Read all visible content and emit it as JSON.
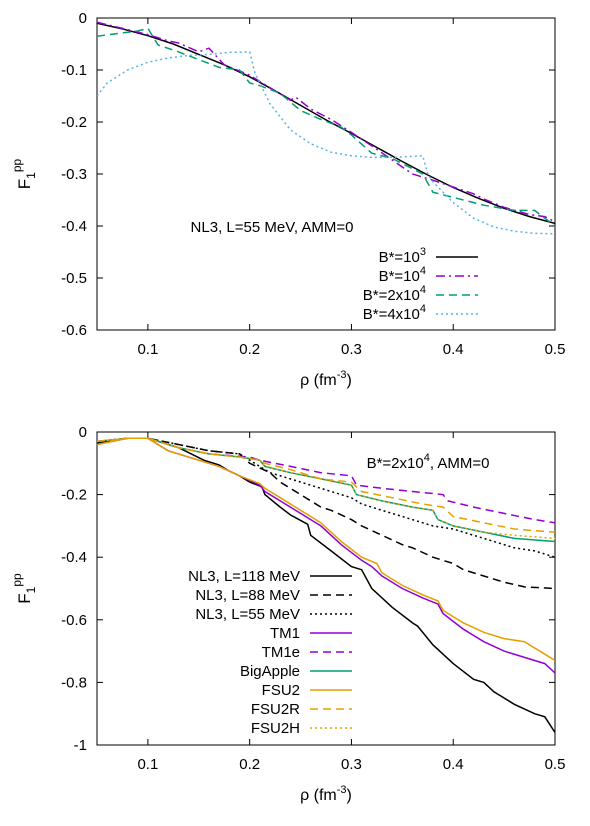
{
  "chart_data": [
    {
      "type": "line",
      "ylabel": "F",
      "ylabel_sub": "1",
      "ylabel_sup": "pp",
      "xlabel": "ρ (fm",
      "xlabel_sup": "-3",
      "xlabel_tail": ")",
      "xlim": [
        0.05,
        0.5
      ],
      "ylim": [
        -0.6,
        0
      ],
      "xticks": [
        0.1,
        0.2,
        0.3,
        0.4,
        0.5
      ],
      "xtick_labels": [
        "0.1",
        "0.2",
        "0.3",
        "0.4",
        "0.5"
      ],
      "yticks": [
        0,
        -0.1,
        -0.2,
        -0.3,
        -0.4,
        -0.5,
        -0.6
      ],
      "ytick_labels": [
        "0",
        "-0.1",
        "-0.2",
        "-0.3",
        "-0.4",
        "-0.5",
        "-0.6"
      ],
      "annotation": "NL3, L=55 MeV, AMM=0",
      "legend_position": "bottom-right",
      "series": [
        {
          "name": "B*=10",
          "name_sup": "3",
          "color": "#000000",
          "dash": "solid",
          "x": [
            0.05,
            0.075,
            0.1,
            0.125,
            0.15,
            0.175,
            0.2,
            0.225,
            0.25,
            0.275,
            0.3,
            0.325,
            0.35,
            0.375,
            0.4,
            0.425,
            0.45,
            0.475,
            0.5
          ],
          "y": [
            -0.01,
            -0.021,
            -0.034,
            -0.05,
            -0.07,
            -0.09,
            -0.113,
            -0.14,
            -0.168,
            -0.196,
            -0.222,
            -0.249,
            -0.276,
            -0.302,
            -0.326,
            -0.347,
            -0.366,
            -0.382,
            -0.395
          ]
        },
        {
          "name": "B*=10",
          "name_sup": "4",
          "color": "#9400d3",
          "dash": "dashdot",
          "x": [
            0.05,
            0.075,
            0.1,
            0.12,
            0.13,
            0.15,
            0.16,
            0.175,
            0.2,
            0.22,
            0.24,
            0.245,
            0.26,
            0.28,
            0.3,
            0.32,
            0.34,
            0.36,
            0.38,
            0.4,
            0.42,
            0.43,
            0.45,
            0.475,
            0.49,
            0.5
          ],
          "y": [
            -0.008,
            -0.02,
            -0.032,
            -0.044,
            -0.048,
            -0.065,
            -0.058,
            -0.09,
            -0.11,
            -0.134,
            -0.158,
            -0.152,
            -0.175,
            -0.195,
            -0.22,
            -0.246,
            -0.273,
            -0.3,
            -0.312,
            -0.325,
            -0.338,
            -0.348,
            -0.364,
            -0.378,
            -0.382,
            -0.392
          ]
        },
        {
          "name": "B*=2x10",
          "name_sup": "4",
          "color": "#009e73",
          "dash": "dashed",
          "x": [
            0.05,
            0.07,
            0.09,
            0.1,
            0.11,
            0.13,
            0.15,
            0.17,
            0.19,
            0.2,
            0.21,
            0.23,
            0.25,
            0.27,
            0.29,
            0.3,
            0.32,
            0.34,
            0.36,
            0.37,
            0.38,
            0.4,
            0.43,
            0.46,
            0.48,
            0.5
          ],
          "y": [
            -0.035,
            -0.03,
            -0.025,
            -0.02,
            -0.052,
            -0.065,
            -0.08,
            -0.095,
            -0.1,
            -0.125,
            -0.13,
            -0.145,
            -0.178,
            -0.195,
            -0.21,
            -0.225,
            -0.26,
            -0.27,
            -0.29,
            -0.3,
            -0.335,
            -0.345,
            -0.36,
            -0.37,
            -0.37,
            -0.4
          ]
        },
        {
          "name": "B*=4x10",
          "name_sup": "4",
          "color": "#56b4e9",
          "dash": "dotted",
          "x": [
            0.05,
            0.06,
            0.08,
            0.1,
            0.12,
            0.14,
            0.16,
            0.18,
            0.19,
            0.2,
            0.205,
            0.22,
            0.24,
            0.26,
            0.28,
            0.3,
            0.32,
            0.34,
            0.36,
            0.37,
            0.375,
            0.38,
            0.4,
            0.42,
            0.44,
            0.46,
            0.48,
            0.5
          ],
          "y": [
            -0.15,
            -0.125,
            -0.1,
            -0.085,
            -0.077,
            -0.072,
            -0.07,
            -0.066,
            -0.066,
            -0.065,
            -0.105,
            -0.165,
            -0.215,
            -0.242,
            -0.258,
            -0.265,
            -0.268,
            -0.268,
            -0.266,
            -0.265,
            -0.3,
            -0.315,
            -0.355,
            -0.385,
            -0.402,
            -0.41,
            -0.414,
            -0.415
          ]
        }
      ]
    },
    {
      "type": "line",
      "ylabel": "F",
      "ylabel_sub": "1",
      "ylabel_sup": "pp",
      "xlabel": "ρ (fm",
      "xlabel_sup": "-3",
      "xlabel_tail": ")",
      "xlim": [
        0.05,
        0.5
      ],
      "ylim": [
        -1,
        0
      ],
      "xticks": [
        0.1,
        0.2,
        0.3,
        0.4,
        0.5
      ],
      "xtick_labels": [
        "0.1",
        "0.2",
        "0.3",
        "0.4",
        "0.5"
      ],
      "yticks": [
        0,
        -0.2,
        -0.4,
        -0.6,
        -0.8,
        -1
      ],
      "ytick_labels": [
        "0",
        "-0.2",
        "-0.4",
        "-0.6",
        "-0.8",
        "-1"
      ],
      "annotation": "B*=2x10",
      "annotation_sup": "4",
      "annotation_tail": ", AMM=0",
      "legend_position": "bottom-left",
      "series": [
        {
          "name": "NL3, L=118 MeV",
          "color": "#000000",
          "dash": "solid",
          "x": [
            0.05,
            0.08,
            0.1,
            0.13,
            0.155,
            0.17,
            0.18,
            0.19,
            0.2,
            0.212,
            0.215,
            0.23,
            0.24,
            0.257,
            0.26,
            0.28,
            0.3,
            0.31,
            0.32,
            0.34,
            0.36,
            0.365,
            0.38,
            0.4,
            0.42,
            0.43,
            0.44,
            0.46,
            0.48,
            0.49,
            0.5
          ],
          "y": [
            -0.035,
            -0.02,
            -0.02,
            -0.05,
            -0.09,
            -0.105,
            -0.125,
            -0.14,
            -0.16,
            -0.175,
            -0.2,
            -0.24,
            -0.265,
            -0.295,
            -0.33,
            -0.38,
            -0.43,
            -0.44,
            -0.5,
            -0.56,
            -0.61,
            -0.62,
            -0.68,
            -0.74,
            -0.79,
            -0.8,
            -0.83,
            -0.87,
            -0.9,
            -0.91,
            -0.96
          ]
        },
        {
          "name": "NL3, L=88 MeV",
          "color": "#000000",
          "dash": "dashed",
          "x": [
            0.05,
            0.08,
            0.1,
            0.13,
            0.16,
            0.19,
            0.2,
            0.22,
            0.23,
            0.25,
            0.27,
            0.28,
            0.3,
            0.31,
            0.33,
            0.35,
            0.36,
            0.38,
            0.4,
            0.41,
            0.43,
            0.45,
            0.47,
            0.5
          ],
          "y": [
            -0.03,
            -0.02,
            -0.02,
            -0.04,
            -0.06,
            -0.07,
            -0.1,
            -0.13,
            -0.16,
            -0.2,
            -0.24,
            -0.25,
            -0.28,
            -0.3,
            -0.33,
            -0.36,
            -0.37,
            -0.4,
            -0.42,
            -0.44,
            -0.46,
            -0.48,
            -0.495,
            -0.5
          ]
        },
        {
          "name": "NL3, L=55 MeV",
          "color": "#000000",
          "dash": "dotted",
          "x": [
            0.05,
            0.08,
            0.1,
            0.13,
            0.16,
            0.19,
            0.2,
            0.22,
            0.24,
            0.26,
            0.28,
            0.3,
            0.31,
            0.33,
            0.35,
            0.37,
            0.38,
            0.4,
            0.42,
            0.44,
            0.46,
            0.48,
            0.5
          ],
          "y": [
            -0.03,
            -0.02,
            -0.02,
            -0.04,
            -0.06,
            -0.07,
            -0.09,
            -0.13,
            -0.15,
            -0.17,
            -0.19,
            -0.21,
            -0.23,
            -0.25,
            -0.27,
            -0.29,
            -0.3,
            -0.31,
            -0.33,
            -0.35,
            -0.37,
            -0.38,
            -0.4
          ]
        },
        {
          "name": "TM1",
          "color": "#9400d3",
          "dash": "solid",
          "x": [
            0.05,
            0.08,
            0.1,
            0.12,
            0.15,
            0.17,
            0.19,
            0.21,
            0.215,
            0.23,
            0.25,
            0.26,
            0.27,
            0.29,
            0.31,
            0.32,
            0.33,
            0.35,
            0.37,
            0.385,
            0.39,
            0.41,
            0.43,
            0.45,
            0.47,
            0.49,
            0.5
          ],
          "y": [
            -0.04,
            -0.02,
            -0.02,
            -0.06,
            -0.09,
            -0.11,
            -0.14,
            -0.17,
            -0.19,
            -0.22,
            -0.26,
            -0.28,
            -0.3,
            -0.36,
            -0.41,
            -0.43,
            -0.46,
            -0.5,
            -0.53,
            -0.55,
            -0.58,
            -0.63,
            -0.67,
            -0.7,
            -0.72,
            -0.74,
            -0.77
          ]
        },
        {
          "name": "TM1e",
          "color": "#9400d3",
          "dash": "dashed",
          "x": [
            0.05,
            0.08,
            0.1,
            0.13,
            0.16,
            0.2,
            0.21,
            0.24,
            0.27,
            0.3,
            0.305,
            0.33,
            0.36,
            0.39,
            0.395,
            0.42,
            0.45,
            0.48,
            0.5
          ],
          "y": [
            -0.03,
            -0.02,
            -0.02,
            -0.05,
            -0.07,
            -0.08,
            -0.09,
            -0.11,
            -0.13,
            -0.14,
            -0.17,
            -0.18,
            -0.19,
            -0.2,
            -0.22,
            -0.24,
            -0.26,
            -0.28,
            -0.29
          ]
        },
        {
          "name": "BigApple",
          "color": "#009e73",
          "dash": "solid",
          "x": [
            0.05,
            0.08,
            0.1,
            0.13,
            0.16,
            0.19,
            0.21,
            0.215,
            0.24,
            0.27,
            0.3,
            0.305,
            0.33,
            0.36,
            0.38,
            0.385,
            0.4,
            0.43,
            0.46,
            0.5
          ],
          "y": [
            -0.03,
            -0.02,
            -0.02,
            -0.05,
            -0.07,
            -0.08,
            -0.09,
            -0.11,
            -0.13,
            -0.15,
            -0.17,
            -0.2,
            -0.22,
            -0.24,
            -0.25,
            -0.28,
            -0.3,
            -0.32,
            -0.34,
            -0.35
          ]
        },
        {
          "name": "FSU2",
          "color": "#e69f00",
          "dash": "solid",
          "x": [
            0.05,
            0.08,
            0.1,
            0.12,
            0.15,
            0.17,
            0.19,
            0.21,
            0.215,
            0.23,
            0.25,
            0.26,
            0.27,
            0.29,
            0.31,
            0.325,
            0.33,
            0.35,
            0.37,
            0.385,
            0.39,
            0.41,
            0.43,
            0.45,
            0.47,
            0.49,
            0.5
          ],
          "y": [
            -0.04,
            -0.02,
            -0.02,
            -0.06,
            -0.09,
            -0.11,
            -0.14,
            -0.165,
            -0.18,
            -0.21,
            -0.25,
            -0.27,
            -0.29,
            -0.35,
            -0.4,
            -0.42,
            -0.45,
            -0.49,
            -0.52,
            -0.54,
            -0.57,
            -0.61,
            -0.64,
            -0.66,
            -0.67,
            -0.71,
            -0.73
          ]
        },
        {
          "name": "FSU2R",
          "color": "#e69f00",
          "dash": "dashed",
          "x": [
            0.05,
            0.08,
            0.1,
            0.13,
            0.16,
            0.19,
            0.21,
            0.215,
            0.24,
            0.27,
            0.3,
            0.31,
            0.34,
            0.37,
            0.39,
            0.4,
            0.43,
            0.46,
            0.5
          ],
          "y": [
            -0.03,
            -0.02,
            -0.02,
            -0.05,
            -0.07,
            -0.08,
            -0.09,
            -0.1,
            -0.12,
            -0.15,
            -0.16,
            -0.19,
            -0.21,
            -0.23,
            -0.24,
            -0.27,
            -0.29,
            -0.31,
            -0.32
          ]
        },
        {
          "name": "FSU2H",
          "color": "#e69f00",
          "dash": "dotted",
          "x": [
            0.05,
            0.08,
            0.1,
            0.13,
            0.16,
            0.19,
            0.21,
            0.215,
            0.24,
            0.27,
            0.3,
            0.305,
            0.33,
            0.36,
            0.38,
            0.385,
            0.4,
            0.43,
            0.46,
            0.5
          ],
          "y": [
            -0.03,
            -0.02,
            -0.02,
            -0.05,
            -0.07,
            -0.08,
            -0.09,
            -0.11,
            -0.13,
            -0.15,
            -0.17,
            -0.2,
            -0.22,
            -0.24,
            -0.25,
            -0.28,
            -0.3,
            -0.32,
            -0.33,
            -0.34
          ]
        }
      ]
    }
  ]
}
